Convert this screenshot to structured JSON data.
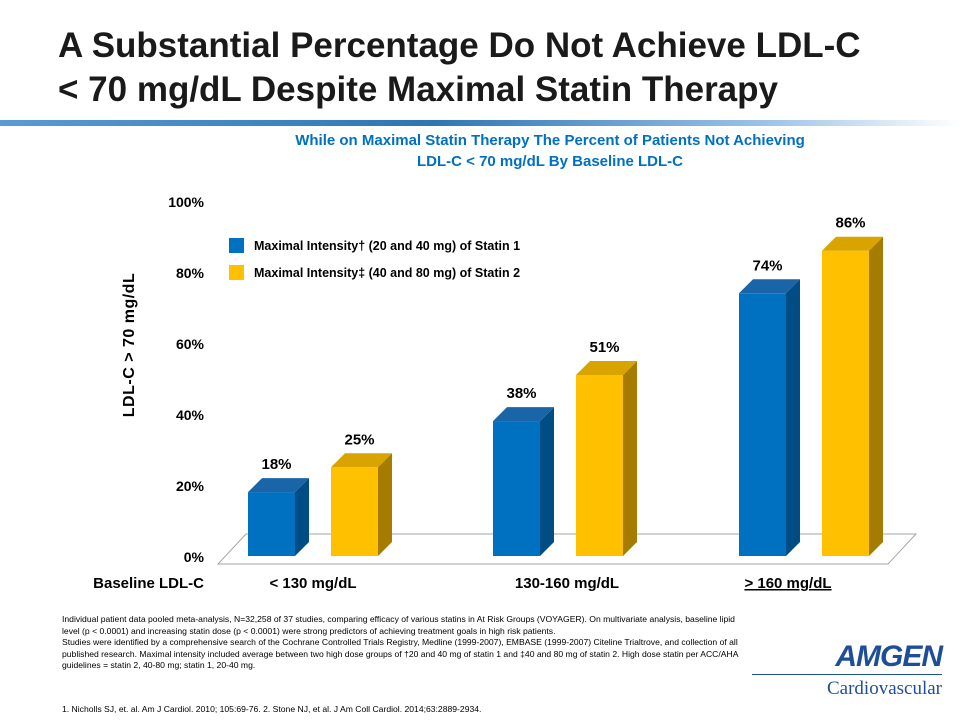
{
  "slide": {
    "title_line1": "A Substantial Percentage Do Not Achieve LDL-C",
    "title_line2": "< 70 mg/dL Despite Maximal Statin Therapy"
  },
  "chart_data": {
    "type": "bar",
    "title": "While on Maximal Statin Therapy The Percent of Patients Not Achieving LDL-C < 70 mg/dL By Baseline LDL-C",
    "title_line1": "While on Maximal Statin Therapy The Percent of Patients Not Achieving",
    "title_line2": "LDL-C < 70 mg/dL By Baseline LDL-C",
    "ylabel": "LDL-C > 70 mg/dL",
    "xlabel": "Baseline LDL-C",
    "categories": [
      "< 130 mg/dL",
      "130-160 mg/dL",
      "> 160 mg/dL"
    ],
    "series": [
      {
        "name": "Maximal Intensity† (20 and 40 mg) of Statin 1",
        "values": [
          18,
          38,
          74
        ],
        "labels": [
          "18%",
          "38%",
          "74%"
        ]
      },
      {
        "name": "Maximal Intensity‡ (40 and 80 mg) of Statin 2",
        "values": [
          25,
          51,
          86
        ],
        "labels": [
          "25%",
          "51%",
          "86%"
        ]
      }
    ],
    "ylim": [
      0,
      100
    ],
    "yticks": [
      "0%",
      "20%",
      "40%",
      "60%",
      "80%",
      "100%"
    ],
    "grid": false,
    "legend_position": "top-left",
    "colors": {
      "statin1": "#0070c0",
      "statin1_side": "#004d86",
      "statin1_top": "#1a64a8",
      "statin2": "#ffc000",
      "statin2_side": "#a67c00",
      "statin2_top": "#d9a300",
      "floor": "#a6a6a6"
    }
  },
  "footnote": {
    "p1": "Individual patient data pooled meta-analysis, N=32,258 of 37 studies, comparing efficacy of various statins in At Risk Groups (VOYAGER).  On multivariate analysis, baseline lipid level (p < 0.0001) and increasing statin dose (p < 0.0001) were strong predictors of achieving treatment goals in high risk patients.",
    "p2": "Studies were identified by a comprehensive search of the Cochrane Controlled Trials Registry, Medline (1999-2007), EMBASE (1999-2007) Citeline Trialtrove, and collection of all published research. Maximal intensity included average  between two high dose groups of †20 and 40 mg of statin 1 and ‡40 and 80 mg of statin 2. High dose statin per ACC/AHA guidelines = statin 2, 40-80 mg; statin 1, 20-40 mg.",
    "references": "1. Nicholls SJ, et. al. Am J Cardiol. 2010; 105:69-76. 2. Stone NJ, et al. J Am Coll Cardiol. 2014;63:2889-2934."
  },
  "logo": {
    "name": "AMGEN",
    "subtitle": "Cardiovascular"
  }
}
